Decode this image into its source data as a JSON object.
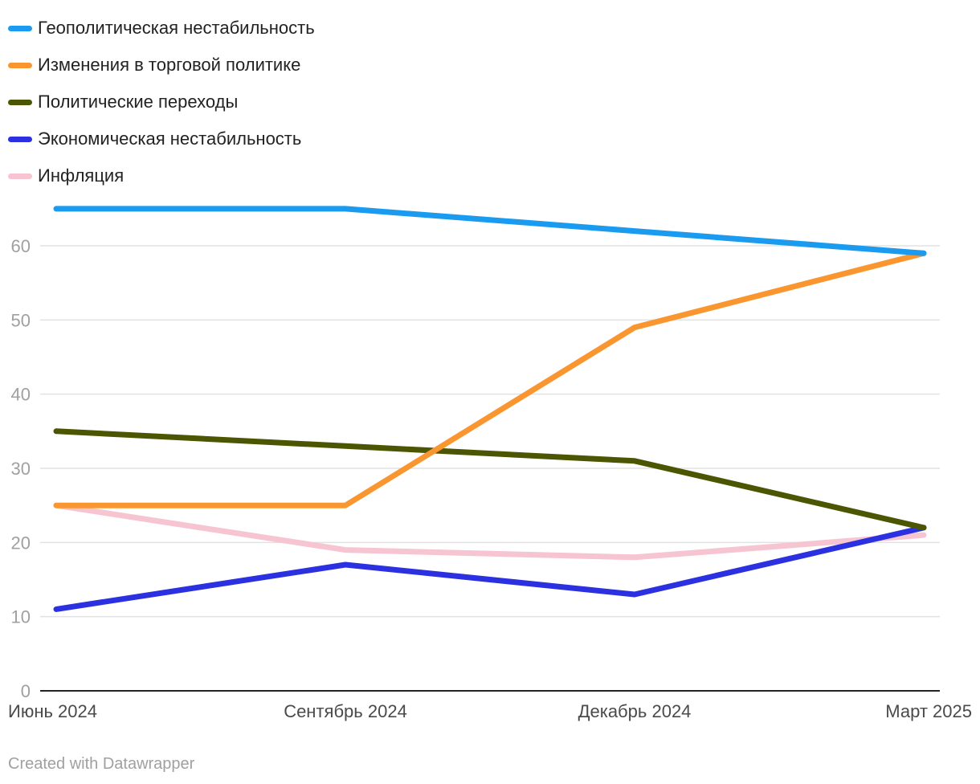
{
  "chart_data": {
    "type": "line",
    "categories": [
      "Июнь 2024",
      "Сентябрь 2024",
      "Декабрь 2024",
      "Март 2025"
    ],
    "ylim": [
      0,
      65
    ],
    "yticks": [
      0,
      10,
      20,
      30,
      40,
      50,
      60
    ],
    "grid": true,
    "legend_position": "top-left",
    "series": [
      {
        "name": "Геополитическая нестабильность",
        "color": "#1a9bf0",
        "values": [
          65,
          65,
          62,
          59
        ]
      },
      {
        "name": "Изменения в торговой политике",
        "color": "#fa9630",
        "values": [
          25,
          25,
          49,
          59
        ]
      },
      {
        "name": "Политические переходы",
        "color": "#4b5502",
        "values": [
          35,
          33,
          31,
          22
        ]
      },
      {
        "name": "Экономическая нестабильность",
        "color": "#2b30e0",
        "values": [
          11,
          17,
          13,
          22
        ]
      },
      {
        "name": "Инфляция",
        "color": "#f7c4d1",
        "values": [
          25,
          19,
          18,
          21
        ]
      }
    ]
  },
  "footer": {
    "credit": "Created with Datawrapper"
  }
}
